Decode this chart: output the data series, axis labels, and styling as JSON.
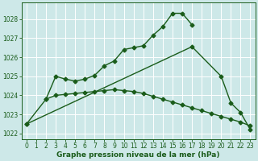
{
  "line1_x": [
    0,
    2,
    3,
    4,
    5,
    6,
    7,
    8,
    9,
    10,
    11,
    12,
    13,
    14,
    15,
    16,
    17
  ],
  "line1_y": [
    1022.5,
    1023.8,
    1025.0,
    1024.85,
    1024.75,
    1024.85,
    1025.05,
    1025.55,
    1025.8,
    1026.4,
    1026.5,
    1026.6,
    1027.15,
    1027.6,
    1028.3,
    1028.3,
    1027.7
  ],
  "line2_x": [
    0,
    17,
    20,
    21,
    22,
    23
  ],
  "line2_y": [
    1022.5,
    1026.55,
    1025.0,
    1023.6,
    1023.1,
    1022.2
  ],
  "line3_x": [
    2,
    3,
    4,
    5,
    6,
    7,
    8,
    9,
    10,
    11,
    12,
    13,
    14,
    15,
    16,
    17,
    18,
    19,
    20,
    21,
    22,
    23
  ],
  "line3_y": [
    1023.8,
    1024.0,
    1024.05,
    1024.1,
    1024.15,
    1024.2,
    1024.25,
    1024.3,
    1024.25,
    1024.2,
    1024.1,
    1023.95,
    1023.8,
    1023.65,
    1023.5,
    1023.35,
    1023.2,
    1023.05,
    1022.9,
    1022.75,
    1022.6,
    1022.4
  ],
  "xlabel": "Graphe pression niveau de la mer (hPa)",
  "xlim": [
    -0.5,
    23.5
  ],
  "ylim": [
    1021.7,
    1028.85
  ],
  "yticks": [
    1022,
    1023,
    1024,
    1025,
    1026,
    1027,
    1028
  ],
  "xticks": [
    0,
    1,
    2,
    3,
    4,
    5,
    6,
    7,
    8,
    9,
    10,
    11,
    12,
    13,
    14,
    15,
    16,
    17,
    18,
    19,
    20,
    21,
    22,
    23
  ],
  "bg_color": "#cde8e8",
  "grid_color": "#ffffff",
  "line_color": "#1a5c1a",
  "label_color": "#1a5c1a",
  "tick_fontsize": 5.5,
  "xlabel_fontsize": 6.5
}
